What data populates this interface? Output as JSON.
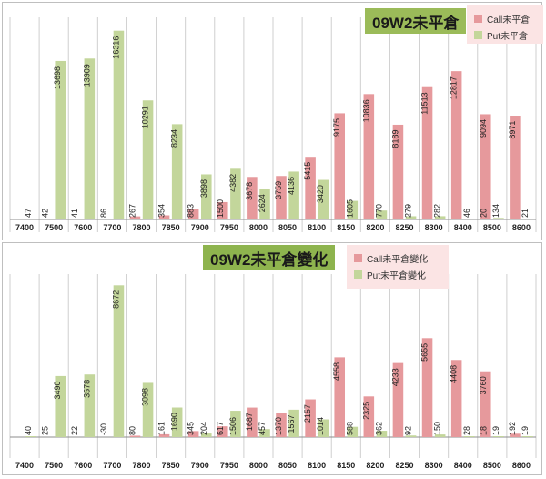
{
  "colors": {
    "call": "#e6999c",
    "put": "#c3d69b",
    "grid": "#cfcfcf",
    "axis": "#8c8c8c",
    "title_bg": "#9bbb59"
  },
  "chart_data": [
    {
      "type": "bar",
      "title": "09W2未平倉",
      "categories": [
        "7400",
        "7500",
        "7600",
        "7700",
        "7800",
        "7850",
        "7900",
        "7950",
        "8000",
        "8050",
        "8100",
        "8150",
        "8200",
        "8250",
        "8300",
        "8400",
        "8500",
        "8600"
      ],
      "series": [
        {
          "name": "Call未平倉",
          "values": [
            null,
            null,
            null,
            null,
            267,
            354,
            883,
            1500,
            3678,
            3759,
            5415,
            9175,
            10836,
            8189,
            11513,
            12817,
            9094,
            8971
          ]
        },
        {
          "name": "Put未平倉",
          "values": [
            47,
            13698,
            13909,
            16316,
            10291,
            8234,
            3898,
            4382,
            2624,
            4136,
            3420,
            1605,
            770,
            279,
            282,
            46,
            134,
            21
          ]
        }
      ],
      "value_labels": {
        "call": [
          "",
          "",
          "",
          "",
          "267",
          "354",
          "883",
          "1500",
          "3678",
          "3759",
          "5415",
          "9175",
          "10836",
          "8189",
          "11513",
          "12817",
          "9094",
          "8971"
        ],
        "put": [
          "47",
          "13698",
          "13909",
          "16316",
          "10291",
          "8234",
          "3898",
          "4382",
          "2624",
          "4136",
          "3420",
          "1605",
          "770",
          "279",
          "282",
          "46",
          "134",
          "21"
        ],
        "extra": [
          "",
          "42",
          "41",
          "86",
          "",
          "",
          "",
          "",
          "",
          "",
          "",
          "",
          "",
          "",
          "",
          "",
          "20",
          ""
        ]
      },
      "ylim": [
        0,
        17000
      ],
      "grid": "vertical",
      "legend": "top-right"
    },
    {
      "type": "bar",
      "title": "09W2未平倉變化",
      "categories": [
        "7400",
        "7500",
        "7600",
        "7700",
        "7800",
        "7850",
        "7900",
        "7950",
        "8000",
        "8050",
        "8100",
        "8150",
        "8200",
        "8250",
        "8300",
        "8400",
        "8500",
        "8600"
      ],
      "series": [
        {
          "name": "Call未平倉變化",
          "values": [
            null,
            null,
            null,
            null,
            80,
            161,
            345,
            617,
            1687,
            1370,
            2157,
            4558,
            2325,
            4233,
            5655,
            4408,
            3760,
            192
          ]
        },
        {
          "name": "Put未平倉變化",
          "values": [
            40,
            3490,
            3578,
            8672,
            3098,
            1690,
            204,
            1506,
            457,
            1567,
            1014,
            588,
            362,
            92,
            150,
            28,
            19,
            19
          ]
        }
      ],
      "value_labels": {
        "call": [
          "",
          "",
          "",
          "",
          "80",
          "161",
          "345",
          "617",
          "1687",
          "1370",
          "2157",
          "4558",
          "2325",
          "4233",
          "5655",
          "4408",
          "3760",
          "192"
        ],
        "put": [
          "40",
          "3490",
          "3578",
          "8672",
          "3098",
          "1690",
          "204",
          "1506",
          "457",
          "1567",
          "1014",
          "588",
          "362",
          "92",
          "150",
          "28",
          "19",
          "19"
        ],
        "extra": [
          "",
          "25",
          "22",
          "-30",
          "",
          "",
          "",
          "",
          "",
          "",
          "",
          "",
          "",
          "",
          "",
          "",
          "18",
          ""
        ]
      },
      "ylim": [
        -200,
        9000
      ],
      "grid": "vertical",
      "legend": "top-right"
    }
  ]
}
